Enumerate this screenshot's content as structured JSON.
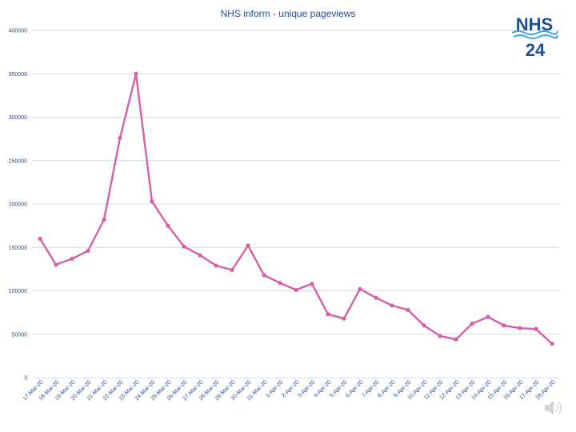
{
  "logo": {
    "line1": "NHS",
    "line2": "24"
  },
  "colors": {
    "series": "#d65fa9",
    "text": "#1f4e9a",
    "grid": "#d7dde8",
    "wave": "#39a8e0"
  },
  "icons": {
    "corner": "speaker-icon"
  },
  "chart_data": {
    "type": "line",
    "title": "NHS inform - unique pageviews",
    "xlabel": "",
    "ylabel": "",
    "ylim": [
      0,
      400000
    ],
    "yticks": [
      0,
      50000,
      100000,
      150000,
      200000,
      250000,
      300000,
      350000,
      400000
    ],
    "grid": true,
    "legend": "none",
    "categories": [
      "17-Mar-20",
      "18-Mar-20",
      "19-Mar-20",
      "20-Mar-20",
      "21-Mar-20",
      "22-Mar-20",
      "23-Mar-20",
      "24-Mar-20",
      "25-Mar-20",
      "26-Mar-20",
      "27-Mar-20",
      "28-Mar-20",
      "29-Mar-20",
      "30-Mar-20",
      "31-Mar-20",
      "1-Apr-20",
      "2-Apr-20",
      "3-Apr-20",
      "4-Apr-20",
      "5-Apr-20",
      "6-Apr-20",
      "7-Apr-20",
      "8-Apr-20",
      "9-Apr-20",
      "10-Apr-20",
      "11-Apr-20",
      "12-Apr-20",
      "13-Apr-20",
      "14-Apr-20",
      "15-Apr-20",
      "16-Apr-20",
      "17-Apr-20",
      "18-Apr-20"
    ],
    "values": [
      160000,
      130000,
      137000,
      146000,
      182000,
      276000,
      350000,
      203000,
      175000,
      151000,
      141000,
      129000,
      124000,
      152000,
      118000,
      109000,
      101000,
      108000,
      73000,
      68000,
      102000,
      92000,
      83000,
      78000,
      60000,
      48000,
      44000,
      62000,
      70000,
      60000,
      57000,
      56000,
      39000
    ]
  }
}
